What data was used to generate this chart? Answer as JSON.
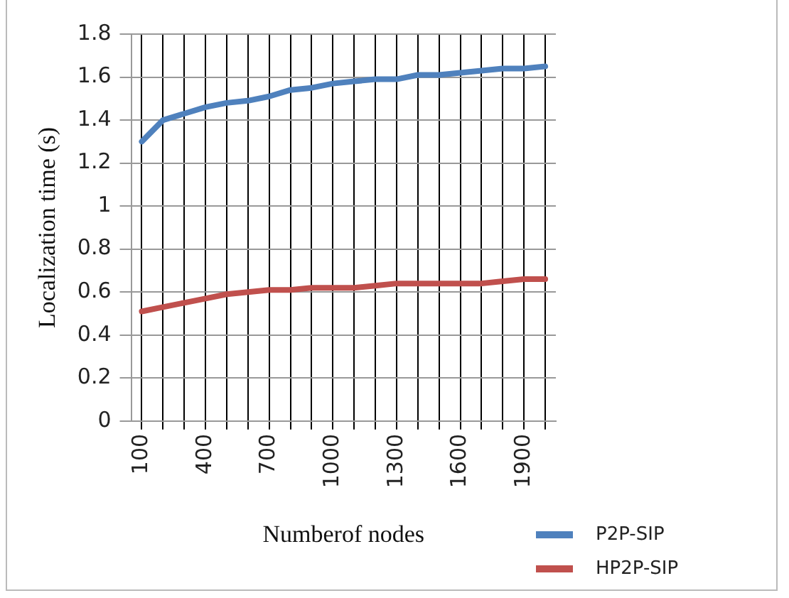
{
  "chart_data": {
    "type": "line",
    "xlabel": "Numberof nodes",
    "ylabel": "Localization time (s)",
    "categories": [
      "100",
      null,
      null,
      "400",
      null,
      null,
      "700",
      null,
      null,
      "1000",
      null,
      null,
      "1300",
      null,
      null,
      "1600",
      null,
      null,
      "1900",
      null
    ],
    "series": [
      {
        "name": "P2P-SIP",
        "color": "#4f81bd",
        "values": [
          1.3,
          1.4,
          1.43,
          1.46,
          1.48,
          1.49,
          1.51,
          1.54,
          1.55,
          1.57,
          1.58,
          1.59,
          1.59,
          1.61,
          1.61,
          1.62,
          1.63,
          1.64,
          1.64,
          1.65
        ]
      },
      {
        "name": "HP2P-SIP",
        "color": "#c0504d",
        "values": [
          0.51,
          0.53,
          0.55,
          0.57,
          0.59,
          0.6,
          0.61,
          0.61,
          0.62,
          0.62,
          0.62,
          0.63,
          0.64,
          0.64,
          0.64,
          0.64,
          0.64,
          0.65,
          0.66,
          0.66
        ]
      }
    ],
    "ylim": [
      0,
      1.8
    ],
    "yticks": [
      0,
      0.2,
      0.4,
      0.6,
      0.8,
      1,
      1.2,
      1.4,
      1.6,
      1.8
    ],
    "grid": true,
    "legend": "bottom right",
    "marker": "none",
    "line_style": "solid"
  }
}
